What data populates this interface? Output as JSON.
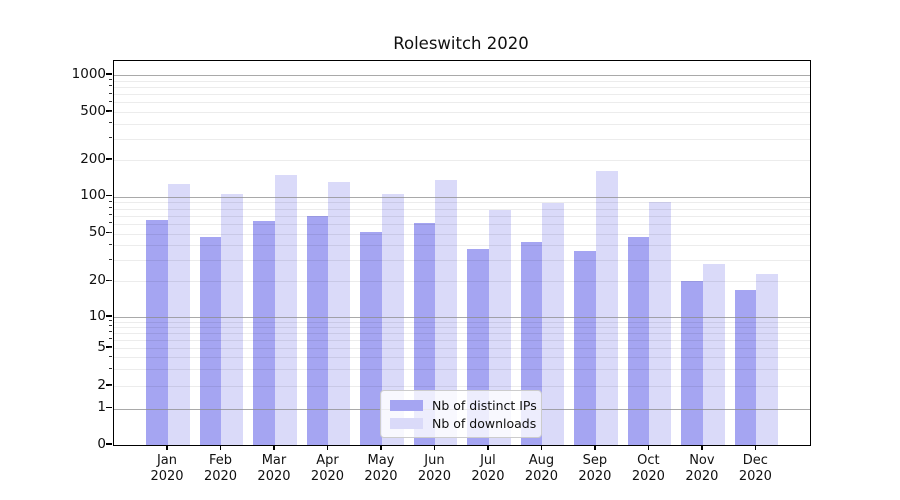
{
  "chart_data": {
    "type": "bar",
    "title": "Roleswitch 2020",
    "categories": [
      "Jan",
      "Feb",
      "Mar",
      "Apr",
      "May",
      "Jun",
      "Jul",
      "Aug",
      "Sep",
      "Oct",
      "Nov",
      "Dec"
    ],
    "x_tick_year": "2020",
    "series": [
      {
        "name": "Nb of distinct IPs",
        "color": "#a5a5f2",
        "values": [
          65,
          47,
          63,
          70,
          52,
          61,
          37,
          43,
          36,
          47,
          20,
          17
        ]
      },
      {
        "name": "Nb of downloads",
        "color": "#dadaf9",
        "values": [
          127,
          106,
          152,
          132,
          105,
          136,
          78,
          89,
          163,
          91,
          28,
          23
        ]
      }
    ],
    "yscale": "log",
    "y_tick_labels": [
      0,
      1,
      2,
      5,
      10,
      20,
      50,
      100,
      200,
      500,
      1000
    ],
    "y_major_gridlines": [
      1,
      10,
      100,
      1000
    ],
    "ylim": [
      0,
      1150
    ],
    "grid": true,
    "legend_position": "lower center",
    "colors": {
      "grid_major": "#8c8c8c",
      "grid_minor": "#e9e9e9",
      "spine": "#000000",
      "background": "#ffffff"
    }
  }
}
